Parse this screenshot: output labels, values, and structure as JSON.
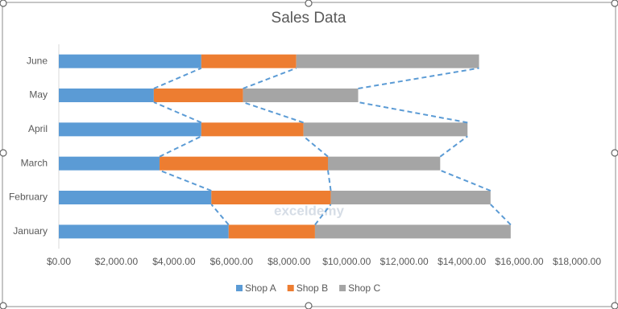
{
  "chart_data": {
    "type": "stacked-bar-horizontal",
    "title": "Sales Data",
    "categories": [
      "January",
      "February",
      "March",
      "April",
      "May",
      "June"
    ],
    "series": [
      {
        "name": "Shop A",
        "color": "#5b9bd5",
        "values": [
          5900,
          5300,
          3500,
          4950,
          3300,
          4950
        ]
      },
      {
        "name": "Shop B",
        "color": "#ed7d31",
        "values": [
          3000,
          4150,
          5850,
          3550,
          3100,
          3300
        ]
      },
      {
        "name": "Shop C",
        "color": "#a5a5a5",
        "values": [
          6800,
          5550,
          3900,
          5700,
          4000,
          6350
        ]
      }
    ],
    "xlim": [
      0,
      18000
    ],
    "xticks": [
      {
        "value": 0,
        "label": "$0.00"
      },
      {
        "value": 2000,
        "label": "$2,000.00"
      },
      {
        "value": 4000,
        "label": "$4,000.00"
      },
      {
        "value": 6000,
        "label": "$6,000.00"
      },
      {
        "value": 8000,
        "label": "$8,000.00"
      },
      {
        "value": 10000,
        "label": "$10,000.00"
      },
      {
        "value": 12000,
        "label": "$12,000.00"
      },
      {
        "value": 14000,
        "label": "$14,000.00"
      },
      {
        "value": 16000,
        "label": "$16,000.00"
      },
      {
        "value": 18000,
        "label": "$18,000.00"
      }
    ],
    "grid": false,
    "series_lines": true,
    "legend": "bottom",
    "watermark": "exceldemy"
  }
}
